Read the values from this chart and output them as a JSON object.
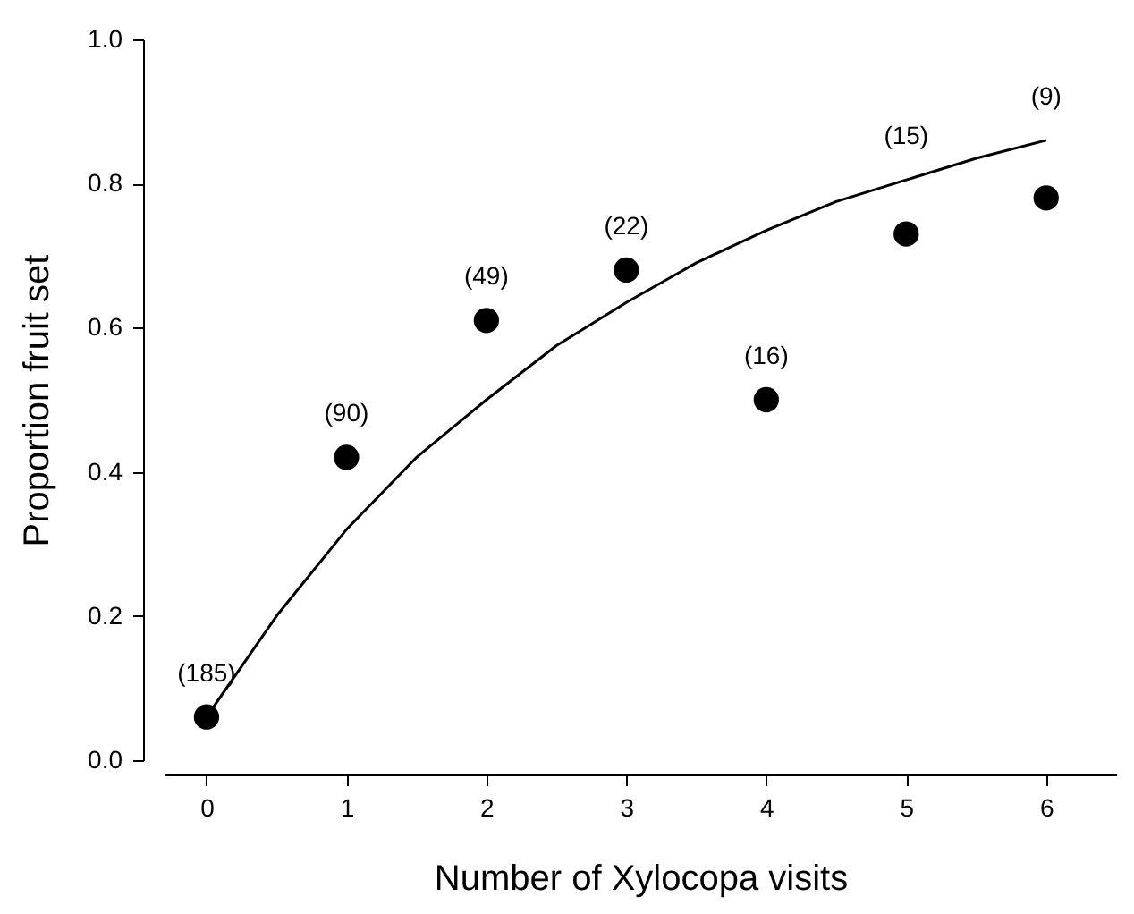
{
  "chart_data": {
    "type": "scatter",
    "xlabel": "Number of Xylocopa visits",
    "ylabel": "Proportion fruit set",
    "xlim": [
      -0.3,
      6.5
    ],
    "xticks": [
      0,
      1,
      2,
      3,
      4,
      5,
      6
    ],
    "ylim": [
      0.0,
      1.0
    ],
    "yticks": [
      {
        "value": 0,
        "label": "0.0"
      },
      {
        "value": 0.2,
        "label": "0.2"
      },
      {
        "value": 0.4,
        "label": "0.4"
      },
      {
        "value": 0.6,
        "label": "0.6"
      },
      {
        "value": 0.8,
        "label": "0.8"
      },
      {
        "value": 1,
        "label": "1.0"
      }
    ],
    "grid": false,
    "series": [
      {
        "color": "#000000",
        "marker": "circle",
        "x": [
          0,
          1,
          2,
          3,
          4,
          5,
          6
        ],
        "values": [
          0.06,
          0.42,
          0.61,
          0.68,
          0.5,
          0.73,
          0.78
        ]
      },
      {
        "type": "line",
        "color": "#000000",
        "x": [
          0,
          0.5,
          1,
          1.5,
          2,
          2.5,
          3,
          3.5,
          4,
          4.5,
          5,
          5.5,
          6
        ],
        "values": [
          0.06,
          0.2,
          0.32,
          0.42,
          0.5,
          0.575,
          0.635,
          0.69,
          0.735,
          0.775,
          0.805,
          0.835,
          0.86
        ]
      }
    ],
    "annotations": [
      {
        "text": "(185)",
        "x": 0,
        "y": 0.06
      },
      {
        "text": "(90)",
        "x": 1,
        "y": 0.42
      },
      {
        "text": "(49)",
        "x": 2,
        "y": 0.61
      },
      {
        "text": "(22)",
        "x": 3,
        "y": 0.68
      },
      {
        "text": "(16)",
        "x": 4,
        "y": 0.5
      },
      {
        "text": "(15)",
        "x": 5,
        "y": 0.805
      },
      {
        "text": "(9)",
        "x": 6,
        "y": 0.86
      }
    ]
  }
}
